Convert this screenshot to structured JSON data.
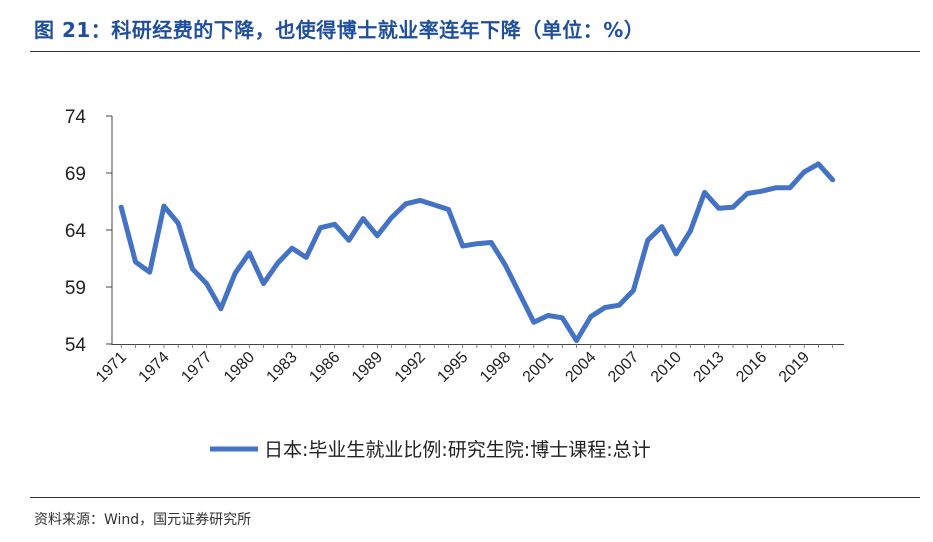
{
  "figure": {
    "title": "图 21：科研经费的下降，也使得博士就业率连年下降（单位：%）",
    "source": "资料来源：Wind，国元证券研究所"
  },
  "colors": {
    "title": "#1f4e9c",
    "series": "#4472c4",
    "axis": "#222222"
  },
  "chart_data": {
    "type": "line",
    "title": "",
    "xlabel": "",
    "ylabel": "",
    "ylim": [
      54,
      74
    ],
    "yticks": [
      54,
      59,
      64,
      69,
      74
    ],
    "xtick_labels": [
      "1971",
      "1974",
      "1977",
      "1980",
      "1983",
      "1986",
      "1989",
      "1992",
      "1995",
      "1998",
      "2001",
      "2004",
      "2007",
      "2010",
      "2013",
      "2016",
      "2019"
    ],
    "grid": false,
    "legend_position": "bottom",
    "x": [
      1971,
      1972,
      1973,
      1974,
      1975,
      1976,
      1977,
      1978,
      1979,
      1980,
      1981,
      1982,
      1983,
      1984,
      1985,
      1986,
      1987,
      1988,
      1989,
      1990,
      1991,
      1992,
      1993,
      1994,
      1995,
      1996,
      1997,
      1998,
      1999,
      2000,
      2001,
      2002,
      2003,
      2004,
      2005,
      2006,
      2007,
      2008,
      2009,
      2010,
      2011,
      2012,
      2013,
      2014,
      2015,
      2016,
      2017,
      2018,
      2019,
      2020,
      2021
    ],
    "series": [
      {
        "name": "日本:毕业生就业比例:研究生院:博士课程:总计",
        "values": [
          66.0,
          61.2,
          60.3,
          66.1,
          64.6,
          60.6,
          59.3,
          57.1,
          60.2,
          62.0,
          59.3,
          61.1,
          62.4,
          61.6,
          64.2,
          64.5,
          63.1,
          65.0,
          63.5,
          65.1,
          66.3,
          66.6,
          66.2,
          65.8,
          62.6,
          62.8,
          62.9,
          60.9,
          58.4,
          55.9,
          56.5,
          56.3,
          54.3,
          56.4,
          57.2,
          57.4,
          58.7,
          63.1,
          64.3,
          61.9,
          63.9,
          67.3,
          65.9,
          66.0,
          67.2,
          67.4,
          67.7,
          67.7,
          69.1,
          69.8,
          68.4
        ]
      }
    ]
  }
}
